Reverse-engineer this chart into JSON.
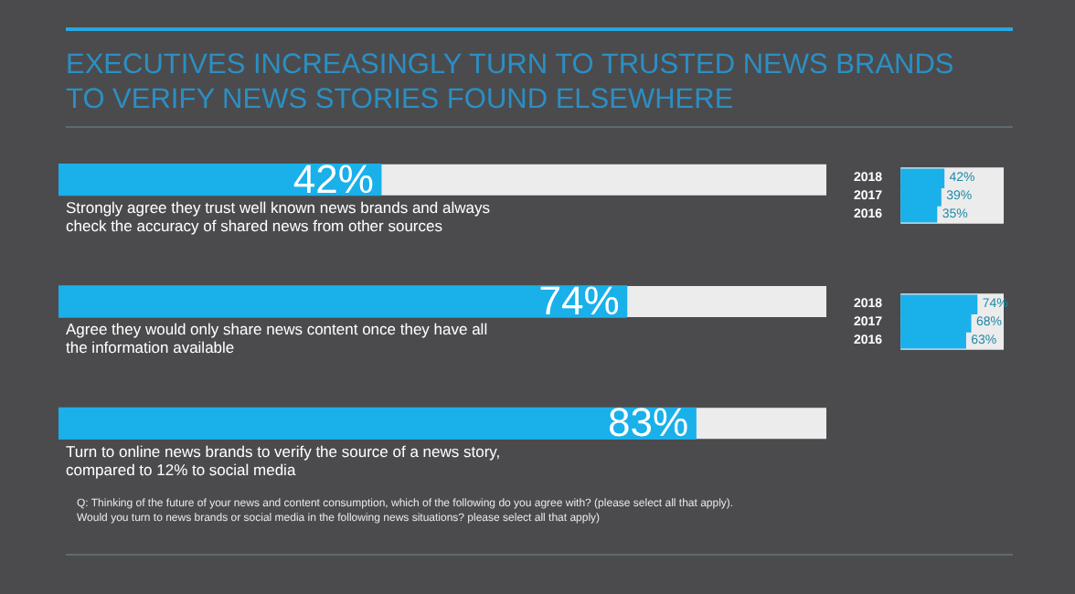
{
  "chart_data": [
    {
      "type": "bar",
      "orientation": "horizontal",
      "title": "EXECUTIVES INCREASINGLY TURN TO TRUSTED NEWS BRANDS\nTO VERIFY NEWS STORIES FOUND ELSEWHERE",
      "categories": [
        "Strongly agree they trust well known news brands and always check the accuracy of shared news from other sources",
        "Agree they would only share news content once they have all the information available",
        "Turn to online news brands to verify the source of a news story, compared to 12% to social media"
      ],
      "values": [
        42,
        74,
        83
      ],
      "value_labels": [
        "42%",
        "74%",
        "83%"
      ],
      "color": "#1ab0ea",
      "xlim": [
        0,
        100
      ],
      "tick_labels": false,
      "annotations": [
        "Q: Thinking of the future of your news and content consumption, which of the following do you agree with? (please select all that apply).\nWould you turn to news brands or social media in the following news situations? please select all that apply)"
      ]
    },
    {
      "type": "bar",
      "orientation": "horizontal",
      "categories": [
        "2018",
        "2017",
        "2016"
      ],
      "values": [
        42,
        39,
        35
      ],
      "value_labels": [
        "42%",
        "39%",
        "35%"
      ],
      "color": "#1ab0ea",
      "xlim": [
        0,
        100
      ],
      "tick_labels": "y"
    },
    {
      "type": "bar",
      "orientation": "horizontal",
      "categories": [
        "2018",
        "2017",
        "2016"
      ],
      "values": [
        74,
        68,
        63
      ],
      "value_labels": [
        "74%",
        "68%",
        "63%"
      ],
      "color": "#1ab0ea",
      "xlim": [
        0,
        100
      ],
      "tick_labels": "y"
    }
  ]
}
